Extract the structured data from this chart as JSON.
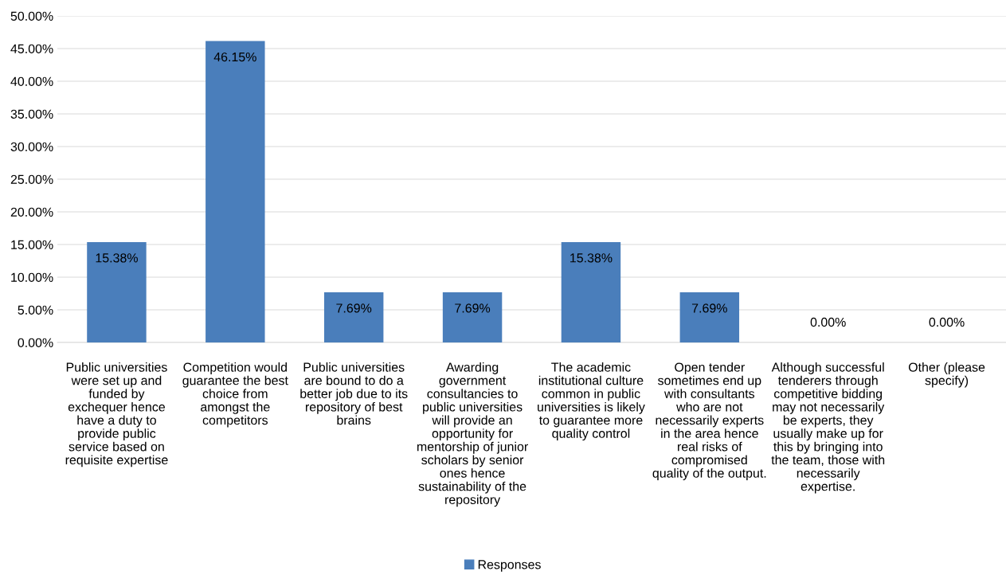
{
  "chart_data": {
    "type": "bar",
    "categories": [
      "Public universities were set up and funded by exchequer hence have a duty to provide public service based on requisite expertise",
      "Competition would guarantee the best choice from amongst the competitors",
      "Public universities are bound to do a better job due to its repository of best brains",
      "Awarding government consultancies to public universities will provide an opportunity for mentorship of junior scholars by senior ones hence sustainability of the repository",
      "The academic institutional culture common in public universities is likely to guarantee more quality control",
      "Open tender sometimes end up with consultants who are not necessarily experts in the area hence real risks of compromised quality of the output.",
      "Although successful tenderers through competitive bidding may not necessarily be experts, they usually make up for this by bringing into the team, those with necessarily expertise.",
      "Other (please specify)"
    ],
    "series": [
      {
        "name": "Responses",
        "color": "#4a7ebb",
        "values": [
          15.38,
          46.15,
          7.69,
          7.69,
          15.38,
          7.69,
          0,
          0
        ],
        "value_labels": [
          "15.38%",
          "46.15%",
          "7.69%",
          "7.69%",
          "15.38%",
          "7.69%",
          "0.00%",
          "0.00%"
        ]
      }
    ],
    "ylim": [
      0,
      50
    ],
    "yticks": [
      {
        "value": 0,
        "label": "0.00%"
      },
      {
        "value": 5,
        "label": "5.00%"
      },
      {
        "value": 10,
        "label": "10.00%"
      },
      {
        "value": 15,
        "label": "15.00%"
      },
      {
        "value": 20,
        "label": "20.00%"
      },
      {
        "value": 25,
        "label": "25.00%"
      },
      {
        "value": 30,
        "label": "30.00%"
      },
      {
        "value": 35,
        "label": "35.00%"
      },
      {
        "value": 40,
        "label": "40.00%"
      },
      {
        "value": 45,
        "label": "45.00%"
      },
      {
        "value": 50,
        "label": "50.00%"
      }
    ],
    "grid": "y",
    "legend": "bottom"
  }
}
